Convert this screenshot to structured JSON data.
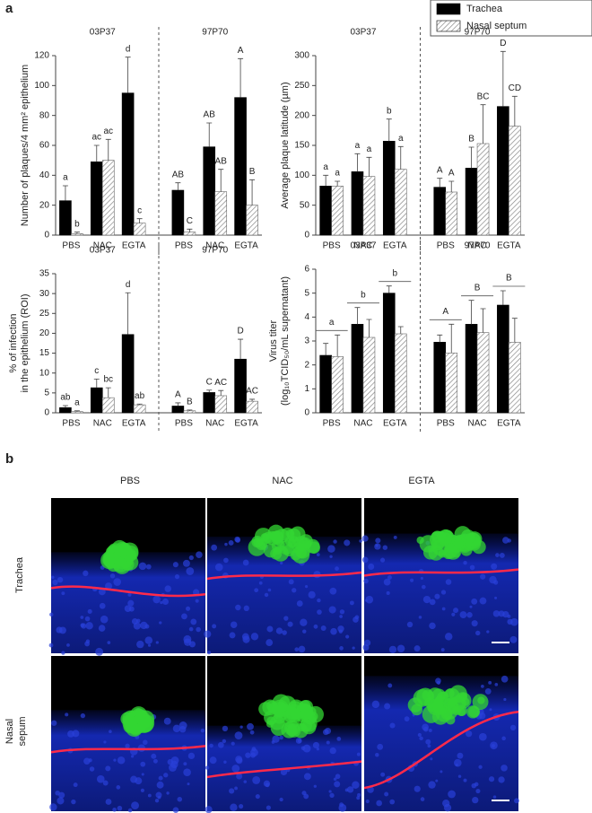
{
  "panel_labels": [
    "a",
    "b"
  ],
  "legend": [
    {
      "label": "Trachea",
      "color": "#000000",
      "hatch": false
    },
    {
      "label": "Nasal septum",
      "color": "#ffffff",
      "hatch": true
    }
  ],
  "chart_data": [
    {
      "type": "bar",
      "ylabel": [
        "Number of plaques/4 mm² epithelium"
      ],
      "groups": [
        "03P37",
        "97P70"
      ],
      "categories": [
        "PBS",
        "NAC",
        "EGTA",
        "PBS",
        "NAC",
        "EGTA"
      ],
      "ylim": [
        0,
        120
      ],
      "yticks": [
        0,
        20,
        40,
        60,
        80,
        100,
        120
      ],
      "series": [
        {
          "color": "#000000",
          "hatch": false,
          "values": [
            23,
            49,
            95,
            30,
            59,
            92
          ],
          "errors": [
            10,
            11,
            24,
            5,
            16,
            26
          ],
          "letters": [
            "a",
            "ac",
            "d",
            "AB",
            "AB",
            "A"
          ]
        },
        {
          "color": "#ffffff",
          "hatch": true,
          "values": [
            1,
            50,
            8,
            2,
            29,
            20
          ],
          "errors": [
            1,
            14,
            3,
            2,
            15,
            17
          ],
          "letters": [
            "b",
            "ac",
            "c",
            "C",
            "AB",
            "B"
          ]
        }
      ]
    },
    {
      "type": "bar",
      "ylabel": [
        "Average plaque latitude (µm)"
      ],
      "groups": [
        "03P37",
        "97P70"
      ],
      "categories": [
        "PBS",
        "NAC",
        "EGTA",
        "PBS",
        "NAC",
        "EGTA"
      ],
      "ylim": [
        0,
        300
      ],
      "yticks": [
        0,
        50,
        100,
        150,
        200,
        250,
        300
      ],
      "series": [
        {
          "color": "#000000",
          "hatch": false,
          "values": [
            82,
            106,
            157,
            80,
            112,
            215
          ],
          "errors": [
            18,
            30,
            37,
            15,
            35,
            92
          ],
          "letters": [
            "a",
            "a",
            "b",
            "A",
            "B",
            "D"
          ]
        },
        {
          "color": "#ffffff",
          "hatch": true,
          "values": [
            82,
            98,
            110,
            72,
            153,
            182
          ],
          "errors": [
            8,
            32,
            38,
            18,
            65,
            50
          ],
          "letters": [
            "a",
            "a",
            "a",
            "A",
            "BC",
            "CD"
          ]
        }
      ]
    },
    {
      "type": "bar",
      "ylabel": [
        "% of infection",
        "in the epithelium (ROI)"
      ],
      "groups": [
        "03P37",
        "97P70"
      ],
      "categories": [
        "PBS",
        "NAC",
        "EGTA",
        "PBS",
        "NAC",
        "EGTA"
      ],
      "ylim": [
        0,
        35
      ],
      "yticks": [
        0,
        5,
        10,
        15,
        20,
        25,
        30,
        35
      ],
      "series": [
        {
          "color": "#000000",
          "hatch": false,
          "values": [
            1.3,
            6.3,
            19.7,
            1.7,
            5.1,
            13.5
          ],
          "errors": [
            0.5,
            2.2,
            10.5,
            0.8,
            0.6,
            5
          ],
          "letters": [
            "ab",
            "c",
            "d",
            "A",
            "C",
            "D"
          ]
        },
        {
          "color": "#ffffff",
          "hatch": true,
          "values": [
            0.3,
            3.8,
            2.0,
            0.5,
            4.3,
            2.9
          ],
          "errors": [
            0.2,
            2.5,
            0.2,
            0.2,
            1.3,
            0.5
          ],
          "letters": [
            "a",
            "bc",
            "ab",
            "B",
            "AC",
            "AC"
          ]
        }
      ]
    },
    {
      "type": "bar",
      "ylabel": [
        "Virus titer",
        "(log₁₀TCID₅₀/mL supernatant)"
      ],
      "groups": [
        "03P37",
        "97P70"
      ],
      "categories": [
        "PBS",
        "NAC",
        "EGTA",
        "PBS",
        "NAC",
        "EGTA"
      ],
      "ylim": [
        0,
        6
      ],
      "yticks": [
        0,
        1,
        2,
        3,
        4,
        5,
        6
      ],
      "category_letters": [
        "a",
        "b",
        "b",
        "A",
        "B",
        "B"
      ],
      "series": [
        {
          "color": "#000000",
          "hatch": false,
          "values": [
            2.4,
            3.7,
            5.0,
            2.95,
            3.7,
            4.5
          ],
          "errors": [
            0.5,
            0.7,
            0.3,
            0.3,
            1.0,
            0.6
          ]
        },
        {
          "color": "#ffffff",
          "hatch": true,
          "values": [
            2.35,
            3.15,
            3.3,
            2.5,
            3.35,
            2.95
          ],
          "errors": [
            0.9,
            0.75,
            0.3,
            1.2,
            1.0,
            1.0
          ]
        }
      ]
    }
  ],
  "panel_b": {
    "columns": [
      "PBS",
      "NAC",
      "EGTA"
    ],
    "rows": [
      {
        "lines": [
          "Trachea"
        ]
      },
      {
        "lines": [
          "Nasal",
          "sepum"
        ]
      }
    ]
  }
}
